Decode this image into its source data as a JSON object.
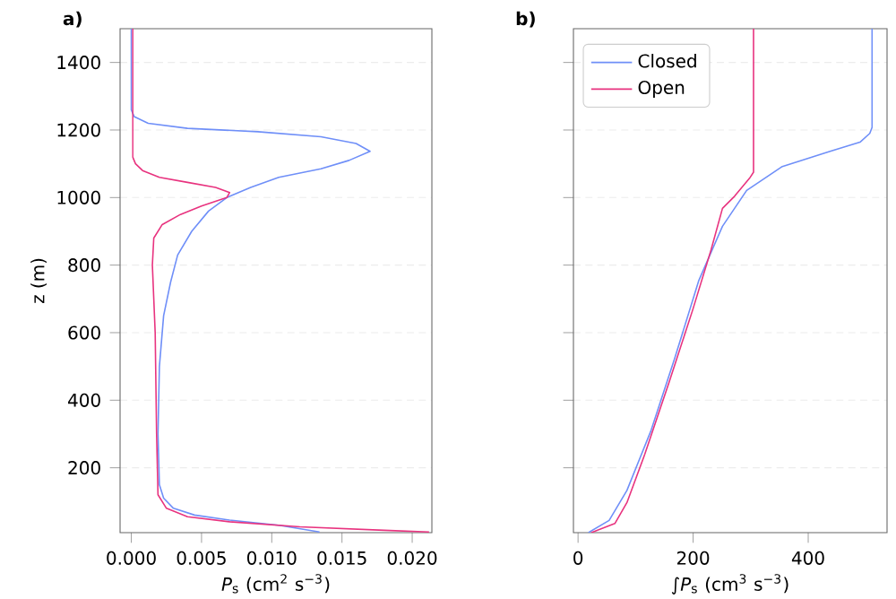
{
  "chart_data": [
    {
      "type": "line",
      "title": "a)",
      "xlabel": "*P*$_{s}$ (cm$^{2}$ s$^{−3}$)",
      "ylabel": "z (m)",
      "xlim": [
        -0.0008,
        0.0214
      ],
      "ylim": [
        8,
        1500
      ],
      "xticks": [
        {
          "value": 0,
          "label": "0.000"
        },
        {
          "value": 0.005,
          "label": "0.005"
        },
        {
          "value": 0.01,
          "label": "0.010"
        },
        {
          "value": 0.015,
          "label": "0.015"
        },
        {
          "value": 0.02,
          "label": "0.020"
        }
      ],
      "yticks": [
        200,
        400,
        600,
        800,
        1000,
        1200,
        1400
      ],
      "grid": "y",
      "series": [
        {
          "color": "#6f8ff8",
          "x": [
            0.0134,
            0.0105,
            0.007,
            0.0045,
            0.003,
            0.0023,
            0.002,
            0.0019,
            0.002,
            0.0023,
            0.0028,
            0.0033,
            0.0043,
            0.0055,
            0.0068,
            0.0085,
            0.0105,
            0.0135,
            0.0155,
            0.017,
            0.016,
            0.0135,
            0.009,
            0.004,
            0.0012,
            0.0002,
            0.0,
            0.0
          ],
          "values": [
            10,
            30,
            45,
            60,
            80,
            110,
            150,
            300,
            500,
            650,
            750,
            830,
            900,
            960,
            1000,
            1030,
            1060,
            1085,
            1110,
            1137,
            1160,
            1180,
            1195,
            1205,
            1220,
            1240,
            1260,
            1500
          ]
        },
        {
          "color": "#e8337f",
          "x": [
            0.0212,
            0.018,
            0.012,
            0.007,
            0.004,
            0.0025,
            0.0019,
            0.0018,
            0.0017,
            0.0015,
            0.0016,
            0.0022,
            0.0035,
            0.005,
            0.0068,
            0.007,
            0.006,
            0.004,
            0.002,
            0.0008,
            0.0003,
            0.0001,
            0.0001
          ],
          "values": [
            10,
            15,
            25,
            40,
            55,
            80,
            120,
            300,
            600,
            800,
            880,
            920,
            950,
            975,
            1000,
            1015,
            1030,
            1045,
            1060,
            1080,
            1100,
            1120,
            1500
          ]
        }
      ]
    },
    {
      "type": "line",
      "title": "b)",
      "xlabel": "∫*P*$_{s}$ (cm$^{3}$ s$^{−3}$)",
      "xlim": [
        -8,
        537
      ],
      "ylim": [
        8,
        1500
      ],
      "xticks": [
        0,
        200,
        400
      ],
      "yticks": [
        200,
        400,
        600,
        800,
        1000,
        1200,
        1400
      ],
      "grid": "y",
      "tick_labels": "x",
      "legend": "top left",
      "series": [
        {
          "name": "Closed",
          "color": "#6f8ff8",
          "x": [
            18,
            54,
            85,
            127,
            168,
            210,
            251,
            293,
            355,
            438,
            490,
            507,
            511,
            511
          ],
          "values": [
            8,
            44,
            133,
            311,
            524,
            755,
            915,
            1021,
            1092,
            1137,
            1164,
            1190,
            1208,
            1500
          ]
        },
        {
          "name": "Open",
          "color": "#e8337f",
          "x": [
            23,
            64,
            85,
            116,
            158,
            199,
            231,
            251,
            272,
            298,
            305,
            305
          ],
          "values": [
            8,
            35,
            97,
            240,
            452,
            666,
            844,
            968,
            1004,
            1057,
            1075,
            1500
          ]
        }
      ]
    }
  ]
}
